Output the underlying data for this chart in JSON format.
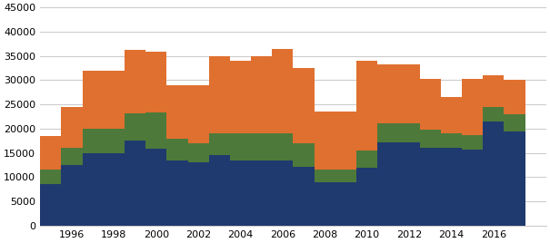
{
  "years": [
    1995,
    1996,
    1997,
    1998,
    1999,
    2000,
    2001,
    2002,
    2003,
    2004,
    2005,
    2006,
    2007,
    2008,
    2009,
    2010,
    2011,
    2012,
    2013,
    2014,
    2015,
    2016,
    2017
  ],
  "flervåningshus": [
    8500,
    12500,
    15000,
    15000,
    17500,
    15900,
    13500,
    13000,
    14500,
    13500,
    13500,
    13500,
    12200,
    9000,
    9000,
    12000,
    17200,
    17200,
    16000,
    16000,
    15700,
    21500,
    19500
  ],
  "radhus": [
    3000,
    3500,
    5000,
    5000,
    5700,
    7500,
    4500,
    4000,
    4500,
    5500,
    5500,
    5500,
    4800,
    2500,
    2500,
    3500,
    4000,
    4000,
    3800,
    3000,
    3000,
    3000,
    3500
  ],
  "villor": [
    7000,
    8500,
    12000,
    12000,
    13000,
    12500,
    11000,
    12000,
    16000,
    15000,
    16000,
    17500,
    15500,
    12000,
    12000,
    18500,
    12000,
    12000,
    10500,
    7500,
    11500,
    6500,
    7000
  ],
  "color_flervåningshus": "#1f3a6e",
  "color_radhus": "#4d7a3a",
  "color_villor": "#e07030",
  "ylim": [
    0,
    45000
  ],
  "yticks": [
    0,
    5000,
    10000,
    15000,
    20000,
    25000,
    30000,
    35000,
    40000,
    45000
  ],
  "xtick_years": [
    1996,
    1998,
    2000,
    2002,
    2004,
    2006,
    2008,
    2010,
    2012,
    2014,
    2016
  ],
  "background_color": "#ffffff",
  "grid_color": "#cccccc"
}
